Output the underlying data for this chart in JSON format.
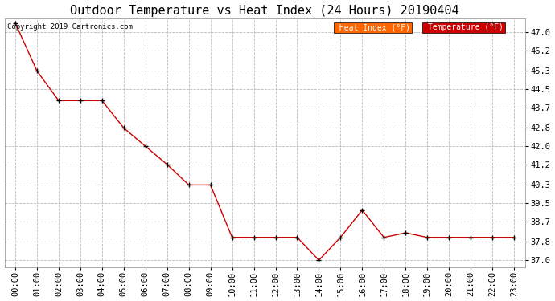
{
  "title": "Outdoor Temperature vs Heat Index (24 Hours) 20190404",
  "copyright": "Copyright 2019 Cartronics.com",
  "x_labels": [
    "00:00",
    "01:00",
    "02:00",
    "03:00",
    "04:00",
    "05:00",
    "06:00",
    "07:00",
    "08:00",
    "09:00",
    "10:00",
    "11:00",
    "12:00",
    "13:00",
    "14:00",
    "15:00",
    "16:00",
    "17:00",
    "18:00",
    "19:00",
    "20:00",
    "21:00",
    "22:00",
    "23:00"
  ],
  "temperature": [
    47.4,
    45.3,
    44.0,
    44.0,
    44.0,
    42.8,
    42.0,
    41.2,
    40.3,
    40.3,
    38.0,
    38.0,
    38.0,
    38.0,
    37.0,
    38.0,
    39.2,
    38.0,
    38.2,
    38.0,
    38.0,
    38.0,
    38.0,
    38.0
  ],
  "ylim": [
    36.7,
    47.6
  ],
  "yticks": [
    37.0,
    37.8,
    38.7,
    39.5,
    40.3,
    41.2,
    42.0,
    42.8,
    43.7,
    44.5,
    45.3,
    46.2,
    47.0
  ],
  "line_color": "#cc0000",
  "marker_color": "#000000",
  "bg_color": "#ffffff",
  "grid_color": "#bbbbbb",
  "legend_heat_bg": "#ff6600",
  "legend_temp_bg": "#cc0000",
  "legend_text_color": "#ffffff",
  "title_fontsize": 11,
  "copyright_fontsize": 6.5,
  "tick_fontsize": 7.5,
  "legend_fontsize": 7
}
